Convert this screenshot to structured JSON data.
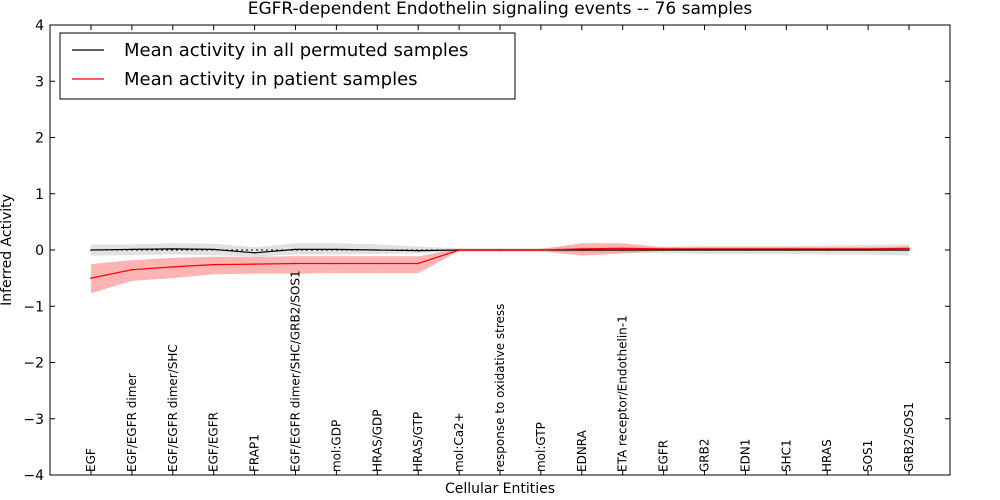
{
  "chart_data": {
    "type": "line",
    "title": "EGFR-dependent Endothelin signaling events -- 76 samples",
    "xlabel": "Cellular Entities",
    "ylabel": "Inferred Activity",
    "ylim": [
      -4,
      4
    ],
    "yticks": [
      -4,
      -3,
      -2,
      -1,
      0,
      1,
      2,
      3,
      4
    ],
    "ytick_labels": [
      "−4",
      "−3",
      "−2",
      "−1",
      "0",
      "1",
      "2",
      "3",
      "4"
    ],
    "legend_position": "top-left",
    "categories": [
      "EGF",
      "EGF/EGFR dimer",
      "EGF/EGFR dimer/SHC",
      "EGF/EGFR",
      "FRAP1",
      "EGF/EGFR dimer/SHC/GRB2/SOS1",
      "mol:GDP",
      "HRAS/GDP",
      "HRAS/GTP",
      "mol:Ca2+",
      "response to oxidative stress",
      "mol:GTP",
      "EDNRA",
      "ETA receptor/Endothelin-1",
      "EGFR",
      "GRB2",
      "EDN1",
      "SHC1",
      "HRAS",
      "SOS1",
      "GRB2/SOS1"
    ],
    "series": [
      {
        "name": "Mean activity in all permuted samples",
        "color": "#000000",
        "band_color": "#c8c8c8",
        "values": [
          0.0,
          0.01,
          0.02,
          0.01,
          -0.05,
          0.01,
          0.01,
          0.0,
          -0.01,
          0.0,
          0.0,
          0.0,
          0.0,
          0.0,
          0.0,
          0.0,
          0.0,
          0.0,
          0.0,
          0.0,
          0.0
        ],
        "lower": [
          -0.1,
          -0.09,
          -0.08,
          -0.09,
          -0.12,
          -0.08,
          -0.08,
          -0.07,
          -0.06,
          -0.03,
          -0.03,
          -0.03,
          -0.04,
          -0.05,
          -0.06,
          -0.07,
          -0.07,
          -0.07,
          -0.08,
          -0.08,
          -0.1
        ],
        "upper": [
          0.1,
          0.1,
          0.12,
          0.11,
          0.05,
          0.12,
          0.12,
          0.1,
          0.06,
          0.03,
          0.03,
          0.03,
          0.05,
          0.05,
          0.06,
          0.07,
          0.07,
          0.07,
          0.08,
          0.09,
          0.1
        ]
      },
      {
        "name": "Mean activity in patient samples",
        "color": "#ff0000",
        "band_color": "#ff8080",
        "values": [
          -0.5,
          -0.35,
          -0.3,
          -0.26,
          -0.25,
          -0.24,
          -0.24,
          -0.24,
          -0.24,
          0.0,
          0.0,
          0.0,
          0.02,
          0.03,
          0.02,
          0.02,
          0.02,
          0.02,
          0.02,
          0.02,
          0.03
        ],
        "lower": [
          -0.77,
          -0.55,
          -0.5,
          -0.43,
          -0.42,
          -0.42,
          -0.41,
          -0.41,
          -0.41,
          -0.02,
          -0.02,
          -0.02,
          -0.1,
          -0.06,
          -0.01,
          -0.01,
          -0.01,
          -0.01,
          -0.01,
          -0.01,
          -0.01
        ],
        "upper": [
          -0.25,
          -0.18,
          -0.14,
          -0.12,
          -0.12,
          -0.11,
          -0.11,
          -0.11,
          -0.11,
          0.02,
          0.02,
          0.02,
          0.12,
          0.12,
          0.05,
          0.05,
          0.05,
          0.05,
          0.05,
          0.05,
          0.06
        ]
      }
    ]
  }
}
